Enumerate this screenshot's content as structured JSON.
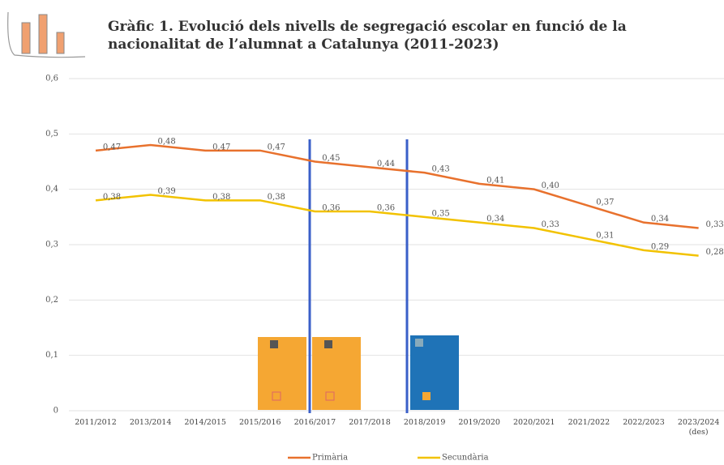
{
  "chart_data": {
    "type": "line",
    "title": "Gràfic 1. Evolució dels nivells de segregació escolar en funció de la nacionalitat de l’alumnat a Catalunya (2011-2023)",
    "categories": [
      "2011/2012",
      "2013/2014",
      "2014/2015",
      "2015/2016",
      "2016/2017",
      "2017/2018",
      "2018/2019",
      "2019/2020",
      "2020/2021",
      "2021/2022",
      "2022/2023",
      "2023/2024 (des)"
    ],
    "series": [
      {
        "name": "Primària",
        "color": "#e8712d",
        "values": [
          0.47,
          0.48,
          0.47,
          0.47,
          0.45,
          0.44,
          0.43,
          0.41,
          0.4,
          0.37,
          0.34,
          0.33
        ],
        "value_labels": [
          "0,47",
          "0,48",
          "0,47",
          "0,47",
          "0,45",
          "0,44",
          "0,43",
          "0,41",
          "0,40",
          "0,37",
          "0,34",
          "0,33"
        ]
      },
      {
        "name": "Secundària",
        "color": "#f2c200",
        "values": [
          0.38,
          0.39,
          0.38,
          0.38,
          0.36,
          0.36,
          0.35,
          0.34,
          0.33,
          0.31,
          0.29,
          0.28
        ],
        "value_labels": [
          "0,38",
          "0,39",
          "0,38",
          "0,38",
          "0,36",
          "0,36",
          "0,35",
          "0,34",
          "0,33",
          "0,31",
          "0,29",
          "0,28"
        ]
      }
    ],
    "ylim": [
      0,
      0.6
    ],
    "yticks": [
      0,
      {
        "value": 0.1,
        "label": "0,1"
      },
      {
        "value": 0.2,
        "label": "0,2"
      },
      {
        "value": 0.3,
        "label": "0,3"
      },
      {
        "value": 0.4,
        "label": "0,4"
      },
      {
        "value": 0.5,
        "label": "0,5"
      },
      {
        "value": 0.6,
        "label": "0,6"
      }
    ],
    "grid": true
  }
}
